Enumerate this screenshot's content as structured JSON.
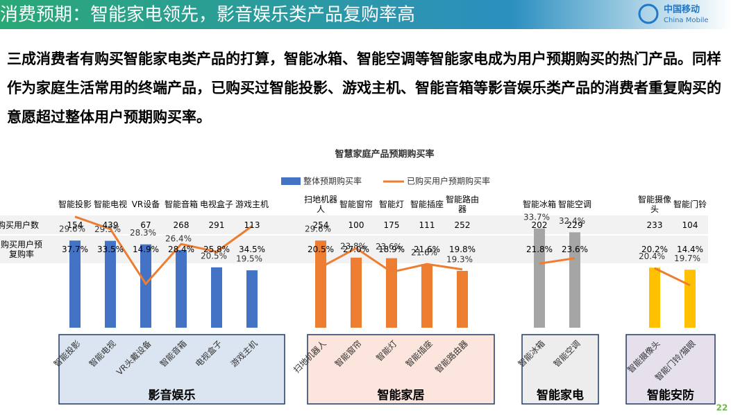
{
  "header": {
    "title": "消费预期：智能家电领先，影音娱乐类产品复购率高",
    "logo_cn": "中国移动",
    "logo_en": "China Mobile"
  },
  "body": {
    "text": "三成消费者有购买智能家电类产品的打算，智能冰箱、智能空调等智能家电成为用户预期购买的热门产品。同样作为家庭生活常用的终端产品，已购买过智能投影、游戏主机、智能音箱等影音娱乐类产品的消费者重复购买的意愿超过整体用户预期购买率。"
  },
  "chart_data": {
    "type": "bar",
    "title": "智慧家庭产品预期购买率",
    "categories": [
      "智能投影",
      "智能电视",
      "VR设备",
      "智能音箱",
      "电视盒子",
      "游戏主机",
      "扫地机器人",
      "智能窗帘",
      "智能灯",
      "智能插座",
      "智能路由器",
      "智能冰箱",
      "智能空调",
      "智能摄像头",
      "智能门铃"
    ],
    "series": [
      {
        "name": "整体预期购买率",
        "color": "#4472c4",
        "values": [
          29.6,
          29.5,
          28.3,
          26.4,
          20.5,
          19.5,
          29.6,
          23.8,
          23.6,
          21.6,
          19.3,
          33.7,
          32.4,
          20.4,
          19.7
        ],
        "value_labels": [
          "29.6%",
          "29.5%",
          "28.3%",
          "26.4%",
          "20.5%",
          "19.5%",
          "29.6%",
          "23.8%",
          "23.6%",
          "21.6%",
          "19.3%",
          "33.7%",
          "32.4%",
          "20.4%",
          "19.7%"
        ]
      },
      {
        "name": "已购买用户预期购买率",
        "type": "line",
        "color": "#ed7d31",
        "values": [
          37.7,
          33.5,
          14.9,
          28.4,
          25.8,
          34.5,
          20.5,
          27.0,
          18.9,
          21.6,
          19.8,
          21.8,
          23.6,
          20.2,
          14.4
        ],
        "value_labels": [
          "37.7%",
          "33.5%",
          "14.9%",
          "28.4%",
          "25.8%",
          "34.5%",
          "20.5%",
          "27.0%",
          "18.9%",
          "21.6%",
          "19.8%",
          "21.8%",
          "23.6%",
          "20.2%",
          "14.4%"
        ]
      }
    ],
    "table": {
      "row_labels": [
        "购买用户数",
        "购买用户预复购率"
      ],
      "buyers": [
        154,
        439,
        67,
        268,
        291,
        113,
        254,
        100,
        175,
        111,
        252,
        202,
        229,
        233,
        104
      ]
    },
    "groups": [
      {
        "name": "影音娱乐",
        "color": "#4472c4",
        "items": [
          "智能投影",
          "智能电视",
          "VR头戴设备",
          "智能音箱",
          "电视盒子",
          "游戏主机"
        ]
      },
      {
        "name": "智能家居",
        "color": "#ed7d31",
        "items": [
          "扫地机器人",
          "智能窗帘",
          "智能灯",
          "智能插座",
          "智能路由器"
        ]
      },
      {
        "name": "智能家电",
        "color": "#a5a5a5",
        "items": [
          "智能冰箱",
          "智能空调"
        ]
      },
      {
        "name": "智能安防",
        "color": "#ffc000",
        "items": [
          "智能摄像头",
          "智能门铃/猫眼"
        ]
      }
    ],
    "ylim": [
      0,
      40
    ]
  },
  "page_number": "22"
}
